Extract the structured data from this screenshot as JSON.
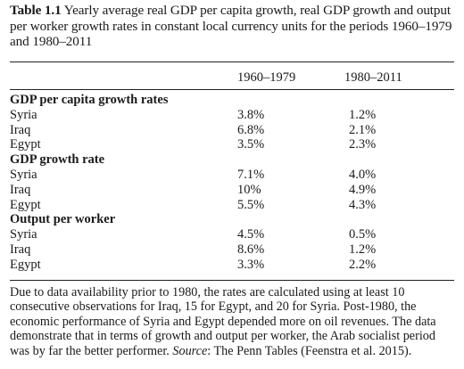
{
  "caption": {
    "number": "Table 1.1",
    "text": "Yearly average real GDP per capita growth, real GDP growth and output per worker growth rates in constant local currency units for the periods 1960–1979 and 1980–2011"
  },
  "columns": [
    "1960–1979",
    "1980–2011"
  ],
  "sections": [
    {
      "title": "GDP per capita growth rates",
      "rows": [
        {
          "country": "Syria",
          "v1960": "3.8%",
          "v1980": "1.2%"
        },
        {
          "country": "Iraq",
          "v1960": "6.8%",
          "v1980": "2.1%"
        },
        {
          "country": "Egypt",
          "v1960": "3.5%",
          "v1980": "2.3%"
        }
      ]
    },
    {
      "title": "GDP growth rate",
      "rows": [
        {
          "country": "Syria",
          "v1960": "7.1%",
          "v1980": "4.0%"
        },
        {
          "country": "Iraq",
          "v1960": "10%",
          "v1980": "4.9%"
        },
        {
          "country": "Egypt",
          "v1960": "5.5%",
          "v1980": "4.3%"
        }
      ]
    },
    {
      "title": "Output per worker",
      "rows": [
        {
          "country": "Syria",
          "v1960": "4.5%",
          "v1980": "0.5%"
        },
        {
          "country": "Iraq",
          "v1960": "8.6%",
          "v1980": "1.2%"
        },
        {
          "country": "Egypt",
          "v1960": "3.3%",
          "v1980": "2.2%"
        }
      ]
    }
  ],
  "note": {
    "text": "Due to data availability prior to 1980, the rates are calculated using at least 10 consecutive observations for Iraq, 15 for Egypt, and 20 for Syria. Post-1980, the economic performance of Syria and Egypt depended more on oil revenues. The data demonstrate that in terms of growth and output per worker, the Arab socialist period was by far the better performer.",
    "source_label": "Source",
    "source_text": ": The Penn Tables (Feenstra et al. 2015)."
  }
}
